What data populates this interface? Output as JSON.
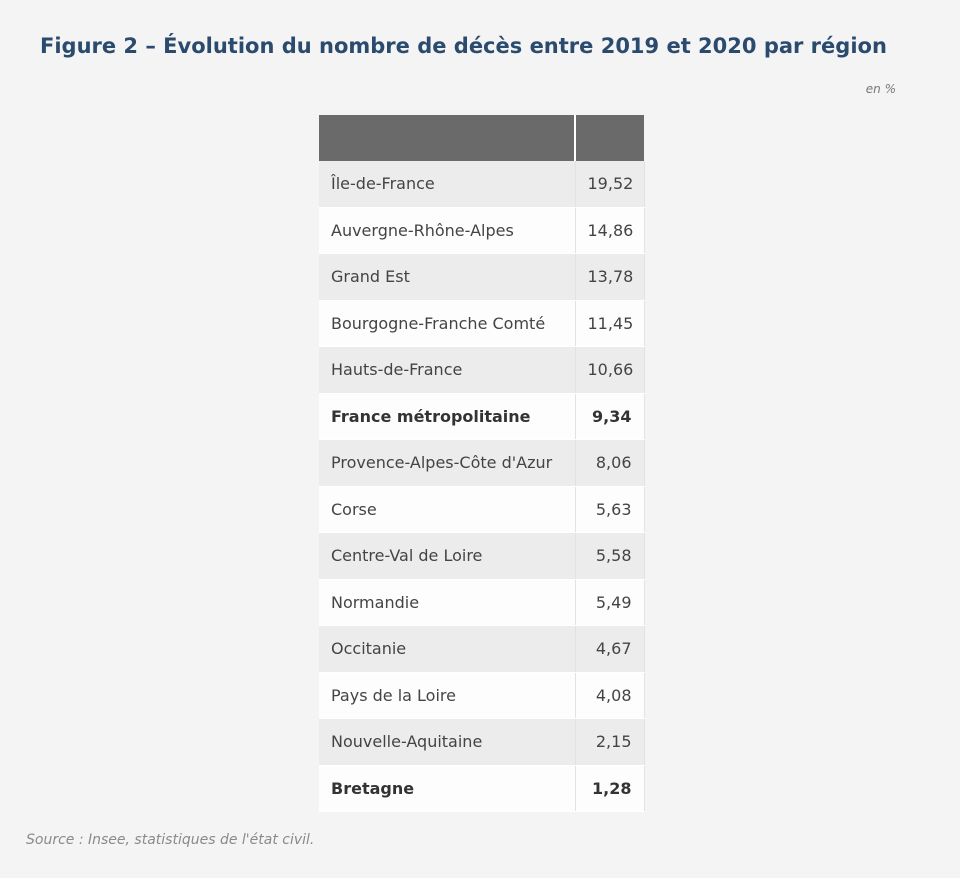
{
  "figure": {
    "title": "Figure 2 – Évolution du nombre de décès entre 2019 et 2020 par région",
    "unit": "en %",
    "source": "Source : Insee, statistiques de l'état civil."
  },
  "chart_data": {
    "type": "table",
    "title": "Figure 2 – Évolution du nombre de décès entre 2019 et 2020 par région",
    "unit": "en %",
    "columns": [
      "",
      ""
    ],
    "rows": [
      {
        "label": "Île-de-France",
        "value": "19,52",
        "bold": false
      },
      {
        "label": "Auvergne-Rhône-Alpes",
        "value": "14,86",
        "bold": false
      },
      {
        "label": "Grand Est",
        "value": "13,78",
        "bold": false
      },
      {
        "label": "Bourgogne-Franche Comté",
        "value": "11,45",
        "bold": false
      },
      {
        "label": "Hauts-de-France",
        "value": "10,66",
        "bold": false
      },
      {
        "label": "France métropolitaine",
        "value": "9,34",
        "bold": true
      },
      {
        "label": "Provence-Alpes-Côte d'Azur",
        "value": "8,06",
        "bold": false
      },
      {
        "label": "Corse",
        "value": "5,63",
        "bold": false
      },
      {
        "label": "Centre-Val de Loire",
        "value": "5,58",
        "bold": false
      },
      {
        "label": "Normandie",
        "value": "5,49",
        "bold": false
      },
      {
        "label": "Occitanie",
        "value": "4,67",
        "bold": false
      },
      {
        "label": "Pays de la Loire",
        "value": "4,08",
        "bold": false
      },
      {
        "label": "Nouvelle-Aquitaine",
        "value": "2,15",
        "bold": false
      },
      {
        "label": "Bretagne",
        "value": "1,28",
        "bold": true
      }
    ],
    "colors": {
      "title": "#2a4a6e",
      "header": "#6a6a6a",
      "row_alt": "#ececec",
      "row": "#fdfdfd"
    }
  }
}
